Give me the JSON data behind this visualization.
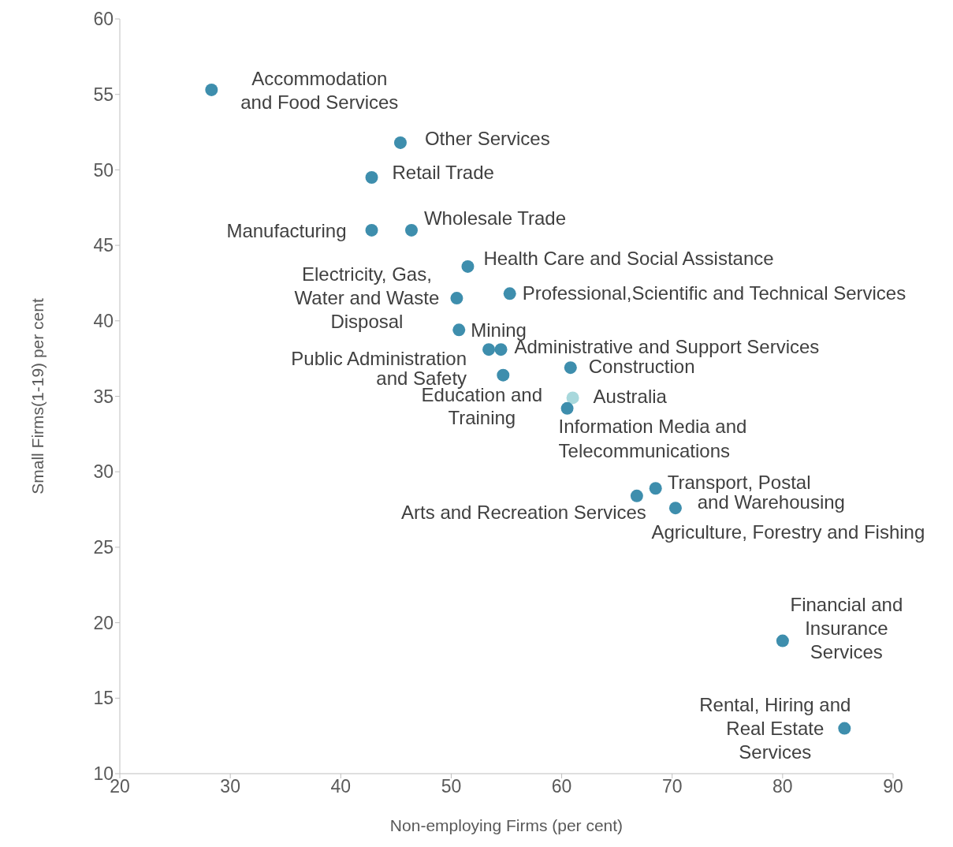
{
  "chart_data": {
    "type": "scatter",
    "xlabel": "Non-employing Firms (per cent)",
    "ylabel": "Small Firms(1-19) per cent",
    "xlim": [
      20,
      90
    ],
    "xticks": [
      20,
      30,
      40,
      50,
      60,
      70,
      80,
      90
    ],
    "ylim": [
      10,
      60
    ],
    "yticks": [
      10,
      15,
      20,
      25,
      30,
      35,
      40,
      45,
      50,
      55,
      60
    ],
    "marker": "circle",
    "series": [
      {
        "name": "Accommodation and Food Services",
        "color": "#3e8ead",
        "x": [
          28.3
        ],
        "values": [
          55.3
        ]
      },
      {
        "name": "Other Services",
        "color": "#3e8ead",
        "x": [
          45.4
        ],
        "values": [
          51.8
        ]
      },
      {
        "name": "Retail Trade",
        "color": "#3e8ead",
        "x": [
          42.8
        ],
        "values": [
          49.5
        ]
      },
      {
        "name": "Manufacturing",
        "color": "#3e8ead",
        "x": [
          42.8
        ],
        "values": [
          46.0
        ]
      },
      {
        "name": "Wholesale Trade",
        "color": "#3e8ead",
        "x": [
          46.4
        ],
        "values": [
          46.0
        ]
      },
      {
        "name": "Health Care and Social Assistance",
        "color": "#3e8ead",
        "x": [
          51.5
        ],
        "values": [
          43.6
        ]
      },
      {
        "name": "Electricity, Gas, Water and Waste Disposal",
        "color": "#3e8ead",
        "x": [
          50.5
        ],
        "values": [
          41.5
        ]
      },
      {
        "name": "Professional,Scientific and Technical Services",
        "color": "#3e8ead",
        "x": [
          55.3
        ],
        "values": [
          41.8
        ]
      },
      {
        "name": "Mining",
        "color": "#3e8ead",
        "x": [
          50.7
        ],
        "values": [
          39.4
        ]
      },
      {
        "name": "Public Administration and Safety",
        "color": "#3e8ead",
        "x": [
          53.4
        ],
        "values": [
          38.1
        ]
      },
      {
        "name": "Administrative and Support Services",
        "color": "#3e8ead",
        "x": [
          54.5
        ],
        "values": [
          38.1
        ]
      },
      {
        "name": "Education and Training",
        "color": "#3e8ead",
        "x": [
          54.7
        ],
        "values": [
          36.4
        ]
      },
      {
        "name": "Construction",
        "color": "#3e8ead",
        "x": [
          60.8
        ],
        "values": [
          36.9
        ]
      },
      {
        "name": "Australia",
        "color": "#a8d8dc",
        "x": [
          61.0
        ],
        "values": [
          34.9
        ]
      },
      {
        "name": "Information Media and Telecommunications",
        "color": "#3e8ead",
        "x": [
          60.5
        ],
        "values": [
          34.2
        ]
      },
      {
        "name": "Transport, Postal and Warehousing",
        "color": "#3e8ead",
        "x": [
          68.5
        ],
        "values": [
          28.9
        ]
      },
      {
        "name": "Arts and Recreation Services",
        "color": "#3e8ead",
        "x": [
          66.8
        ],
        "values": [
          28.4
        ]
      },
      {
        "name": "Agriculture, Forestry and Fishing",
        "color": "#3e8ead",
        "x": [
          70.3
        ],
        "values": [
          27.6
        ]
      },
      {
        "name": "Financial and Insurance Services",
        "color": "#3e8ead",
        "x": [
          80.0
        ],
        "values": [
          18.8
        ]
      },
      {
        "name": "Rental, Hiring and Real Estate Services",
        "color": "#3e8ead",
        "x": [
          85.6
        ],
        "values": [
          13.0
        ]
      }
    ]
  }
}
